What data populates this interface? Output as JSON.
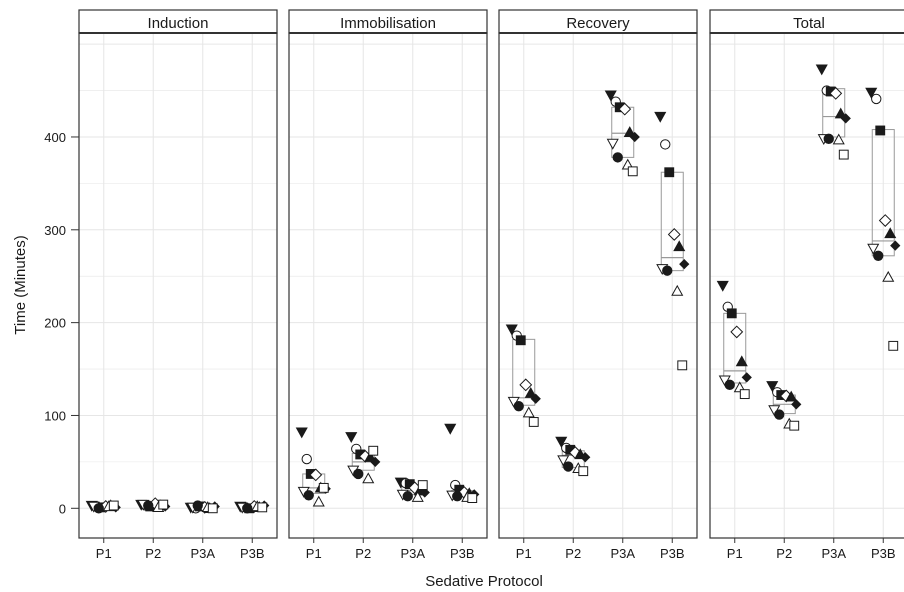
{
  "chart_data": {
    "type": "scatter",
    "subtype": "faceted box plot with jittered points",
    "xlabel": "Sedative Protocol",
    "ylabel": "Time (Minutes)",
    "ylim": [
      -32,
      512
    ],
    "yticks": [
      0,
      100,
      200,
      300,
      400
    ],
    "categories": [
      "P1",
      "P2",
      "P3A",
      "P3B"
    ],
    "grid": true,
    "colors": {
      "grid": "#e6e6e6",
      "box": "#999999",
      "marker": "#1a1a1a",
      "panel_border": "#333333",
      "strip_fill": "#ffffff"
    },
    "panels": [
      {
        "title": "Induction",
        "boxes": [
          {
            "category": "P1",
            "q1": 1,
            "median": 2,
            "q3": 3
          },
          {
            "category": "P2",
            "q1": 2,
            "median": 3,
            "q3": 4
          },
          {
            "category": "P3A",
            "q1": 0,
            "median": 1,
            "q3": 2
          },
          {
            "category": "P3B",
            "q1": 1,
            "median": 1,
            "q3": 2
          }
        ],
        "points": [
          {
            "category": "P1",
            "values": [
              3,
              2,
              1,
              2,
              3,
              1,
              2,
              0,
              2,
              3
            ]
          },
          {
            "category": "P2",
            "values": [
              4,
              3,
              2,
              5,
              3,
              2,
              4,
              3,
              1,
              4
            ]
          },
          {
            "category": "P3A",
            "values": [
              1,
              0,
              2,
              1,
              0,
              2,
              1,
              3,
              1,
              0
            ]
          },
          {
            "category": "P3B",
            "values": [
              2,
              1,
              0,
              2,
              1,
              3,
              1,
              0,
              2,
              1
            ]
          }
        ]
      },
      {
        "title": "Immobilisation",
        "boxes": [
          {
            "category": "P1",
            "q1": 16,
            "median": 22,
            "q3": 37
          },
          {
            "category": "P2",
            "q1": 41,
            "median": 50,
            "q3": 59
          },
          {
            "category": "P3A",
            "q1": 15,
            "median": 19,
            "q3": 24
          },
          {
            "category": "P3B",
            "q1": 13,
            "median": 16,
            "q3": 19
          }
        ],
        "points": [
          {
            "category": "P1",
            "values": [
              82,
              53,
              37,
              36,
              22,
              21,
              18,
              14,
              7,
              22
            ]
          },
          {
            "category": "P2",
            "values": [
              77,
              64,
              58,
              56,
              55,
              50,
              41,
              37,
              32,
              62
            ]
          },
          {
            "category": "P3A",
            "values": [
              28,
              27,
              26,
              22,
              19,
              17,
              15,
              13,
              12,
              25
            ]
          },
          {
            "category": "P3B",
            "values": [
              86,
              25,
              20,
              17,
              16,
              15,
              14,
              13,
              12,
              11
            ]
          }
        ]
      },
      {
        "title": "Recovery",
        "boxes": [
          {
            "category": "P1",
            "q1": 111,
            "median": 119,
            "q3": 182
          },
          {
            "category": "P2",
            "q1": 44,
            "median": 57,
            "q3": 62
          },
          {
            "category": "P3A",
            "q1": 378,
            "median": 404,
            "q3": 432
          },
          {
            "category": "P3B",
            "q1": 256,
            "median": 270,
            "q3": 362
          }
        ],
        "points": [
          {
            "category": "P1",
            "values": [
              193,
              186,
              181,
              133,
              124,
              118,
              115,
              110,
              103,
              93
            ]
          },
          {
            "category": "P2",
            "values": [
              72,
              65,
              63,
              60,
              58,
              55,
              52,
              45,
              43,
              40
            ]
          },
          {
            "category": "P3A",
            "values": [
              445,
              438,
              432,
              430,
              405,
              400,
              393,
              378,
              370,
              363
            ]
          },
          {
            "category": "P3B",
            "values": [
              422,
              392,
              362,
              295,
              282,
              263,
              258,
              256,
              234,
              154
            ]
          }
        ]
      },
      {
        "title": "Total",
        "boxes": [
          {
            "category": "P1",
            "q1": 135,
            "median": 148,
            "q3": 210
          },
          {
            "category": "P2",
            "q1": 102,
            "median": 112,
            "q3": 122
          },
          {
            "category": "P3A",
            "q1": 400,
            "median": 422,
            "q3": 452
          },
          {
            "category": "P3B",
            "q1": 272,
            "median": 288,
            "q3": 408
          }
        ],
        "points": [
          {
            "category": "P1",
            "values": [
              240,
              217,
              210,
              190,
              158,
              141,
              138,
              133,
              130,
              123
            ]
          },
          {
            "category": "P2",
            "values": [
              132,
              125,
              122,
              121,
              120,
              112,
              106,
              101,
              91,
              89
            ]
          },
          {
            "category": "P3A",
            "values": [
              473,
              450,
              449,
              447,
              425,
              420,
              398,
              398,
              397,
              381
            ]
          },
          {
            "category": "P3B",
            "values": [
              448,
              441,
              407,
              310,
              296,
              283,
              280,
              272,
              249,
              175
            ]
          }
        ]
      }
    ],
    "marker_shapes": [
      "triangle-down-filled",
      "circle-open",
      "square-filled",
      "diamond-open",
      "triangle-up-filled",
      "diamond-filled",
      "triangle-down-open",
      "circle-filled",
      "triangle-up-open",
      "square-open"
    ]
  }
}
